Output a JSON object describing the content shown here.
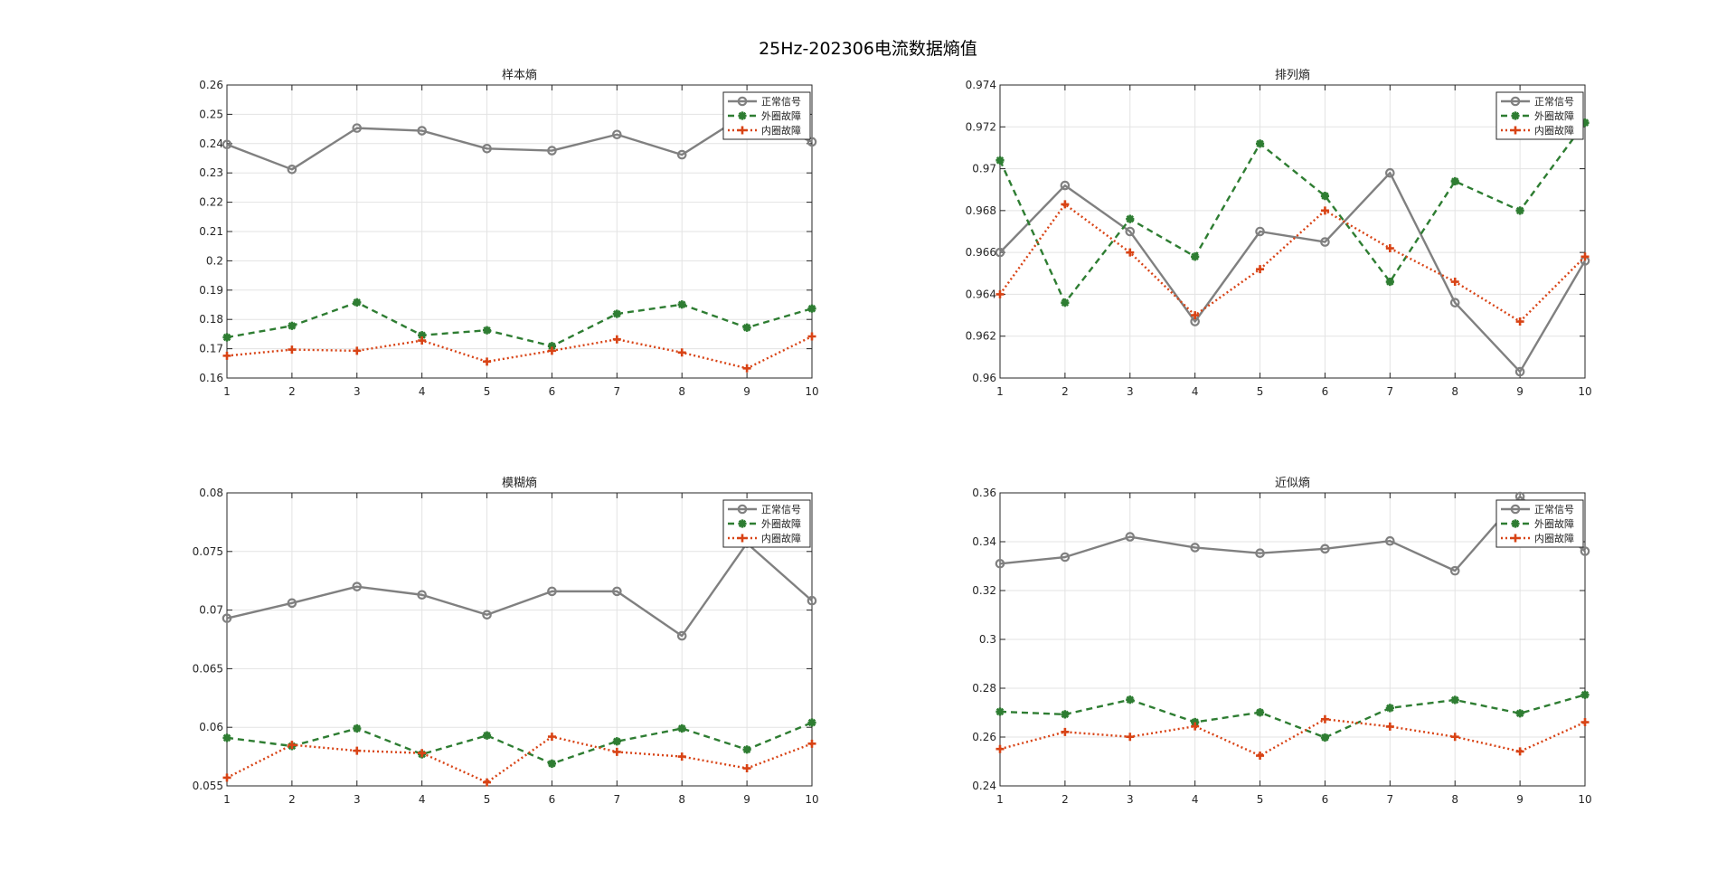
{
  "figure": {
    "title": "25Hz-202306电流数据熵值"
  },
  "chart_data": [
    {
      "type": "line",
      "title": "样本熵",
      "xlabel": "",
      "ylabel": "",
      "x": [
        1,
        2,
        3,
        4,
        5,
        6,
        7,
        8,
        9,
        10
      ],
      "xticks": [
        "1",
        "2",
        "3",
        "4",
        "5",
        "6",
        "7",
        "8",
        "9",
        "10"
      ],
      "ylim": [
        0.16,
        0.26
      ],
      "yticks": [
        0.16,
        0.17,
        0.18,
        0.19,
        0.2,
        0.21,
        0.22,
        0.23,
        0.24,
        0.25,
        0.26
      ],
      "ytick_labels": [
        "0.16",
        "0.17",
        "0.18",
        "0.19",
        "0.2",
        "0.21",
        "0.22",
        "0.23",
        "0.24",
        "0.25",
        "0.26"
      ],
      "grid": true,
      "legend_position": "top-right",
      "series": [
        {
          "name": "正常信号",
          "color": "#808080",
          "linestyle": "solid",
          "marker": "circle",
          "values": [
            0.2397,
            0.2312,
            0.2453,
            0.2444,
            0.2383,
            0.2376,
            0.2431,
            0.2362,
            0.2503,
            0.2406
          ]
        },
        {
          "name": "外圈故障",
          "color": "#2e7d32",
          "linestyle": "dashed",
          "marker": "asterisk",
          "values": [
            0.1739,
            0.1778,
            0.1858,
            0.1746,
            0.1763,
            0.1709,
            0.1819,
            0.1851,
            0.1772,
            0.1837
          ]
        },
        {
          "name": "内圈故障",
          "color": "#d84315",
          "linestyle": "dotted",
          "marker": "plus",
          "values": [
            0.1676,
            0.1697,
            0.1693,
            0.1728,
            0.1656,
            0.1693,
            0.1732,
            0.1687,
            0.1633,
            0.1742
          ]
        }
      ]
    },
    {
      "type": "line",
      "title": "排列熵",
      "xlabel": "",
      "ylabel": "",
      "x": [
        1,
        2,
        3,
        4,
        5,
        6,
        7,
        8,
        9,
        10
      ],
      "xticks": [
        "1",
        "2",
        "3",
        "4",
        "5",
        "6",
        "7",
        "8",
        "9",
        "10"
      ],
      "ylim": [
        0.96,
        0.974
      ],
      "yticks": [
        0.96,
        0.962,
        0.964,
        0.966,
        0.968,
        0.97,
        0.972,
        0.974
      ],
      "ytick_labels": [
        "0.96",
        "0.962",
        "0.964",
        "0.966",
        "0.968",
        "0.97",
        "0.972",
        "0.974"
      ],
      "grid": true,
      "legend_position": "top-right",
      "series": [
        {
          "name": "正常信号",
          "color": "#808080",
          "linestyle": "solid",
          "marker": "circle",
          "values": [
            0.966,
            0.9692,
            0.967,
            0.9627,
            0.967,
            0.9665,
            0.9698,
            0.9636,
            0.9603,
            0.9656
          ]
        },
        {
          "name": "外圈故障",
          "color": "#2e7d32",
          "linestyle": "dashed",
          "marker": "asterisk",
          "values": [
            0.9704,
            0.9636,
            0.9676,
            0.9658,
            0.9712,
            0.9687,
            0.9646,
            0.9694,
            0.968,
            0.9722
          ]
        },
        {
          "name": "内圈故障",
          "color": "#d84315",
          "linestyle": "dotted",
          "marker": "plus",
          "values": [
            0.964,
            0.9683,
            0.966,
            0.963,
            0.9652,
            0.968,
            0.9662,
            0.9646,
            0.9627,
            0.9658
          ]
        }
      ]
    },
    {
      "type": "line",
      "title": "模糊熵",
      "xlabel": "",
      "ylabel": "",
      "x": [
        1,
        2,
        3,
        4,
        5,
        6,
        7,
        8,
        9,
        10
      ],
      "xticks": [
        "1",
        "2",
        "3",
        "4",
        "5",
        "6",
        "7",
        "8",
        "9",
        "10"
      ],
      "ylim": [
        0.055,
        0.08
      ],
      "yticks": [
        0.055,
        0.06,
        0.065,
        0.07,
        0.075,
        0.08
      ],
      "ytick_labels": [
        "0.055",
        "0.06",
        "0.065",
        "0.07",
        "0.075",
        "0.08"
      ],
      "grid": true,
      "legend_position": "top-right",
      "series": [
        {
          "name": "正常信号",
          "color": "#808080",
          "linestyle": "solid",
          "marker": "circle",
          "values": [
            0.0693,
            0.0706,
            0.072,
            0.0713,
            0.0696,
            0.0716,
            0.0716,
            0.0678,
            0.0757,
            0.0708
          ]
        },
        {
          "name": "外圈故障",
          "color": "#2e7d32",
          "linestyle": "dashed",
          "marker": "asterisk",
          "values": [
            0.0591,
            0.0584,
            0.0599,
            0.0577,
            0.0593,
            0.0569,
            0.0588,
            0.0599,
            0.0581,
            0.0604
          ]
        },
        {
          "name": "内圈故障",
          "color": "#d84315",
          "linestyle": "dotted",
          "marker": "plus",
          "values": [
            0.0557,
            0.0585,
            0.058,
            0.0578,
            0.0553,
            0.0592,
            0.0579,
            0.0575,
            0.0565,
            0.0586
          ]
        }
      ]
    },
    {
      "type": "line",
      "title": "近似熵",
      "xlabel": "",
      "ylabel": "",
      "x": [
        1,
        2,
        3,
        4,
        5,
        6,
        7,
        8,
        9,
        10
      ],
      "xticks": [
        "1",
        "2",
        "3",
        "4",
        "5",
        "6",
        "7",
        "8",
        "9",
        "10"
      ],
      "ylim": [
        0.24,
        0.36
      ],
      "yticks": [
        0.24,
        0.26,
        0.28,
        0.3,
        0.32,
        0.34,
        0.36
      ],
      "ytick_labels": [
        "0.24",
        "0.26",
        "0.28",
        "0.3",
        "0.32",
        "0.34",
        "0.36"
      ],
      "grid": true,
      "legend_position": "top-right",
      "series": [
        {
          "name": "正常信号",
          "color": "#808080",
          "linestyle": "solid",
          "marker": "circle",
          "values": [
            0.331,
            0.3337,
            0.342,
            0.3376,
            0.3353,
            0.3371,
            0.3403,
            0.3281,
            0.3585,
            0.3361
          ]
        },
        {
          "name": "外圈故障",
          "color": "#2e7d32",
          "linestyle": "dashed",
          "marker": "asterisk",
          "values": [
            0.2704,
            0.2693,
            0.2753,
            0.2661,
            0.2701,
            0.2598,
            0.2719,
            0.2752,
            0.2697,
            0.2773
          ]
        },
        {
          "name": "内圈故障",
          "color": "#d84315",
          "linestyle": "dotted",
          "marker": "plus",
          "values": [
            0.2551,
            0.2621,
            0.2601,
            0.2644,
            0.2524,
            0.2673,
            0.2643,
            0.2601,
            0.2541,
            0.2661
          ]
        }
      ]
    }
  ]
}
